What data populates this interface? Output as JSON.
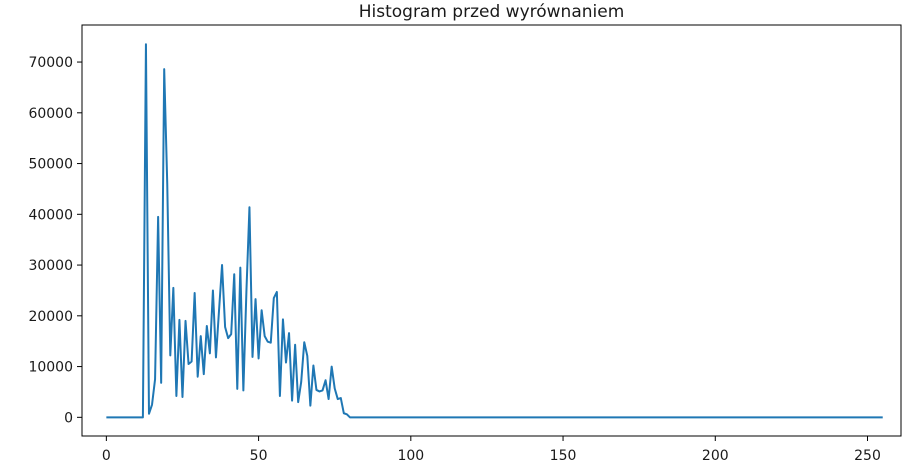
{
  "chart_data": {
    "type": "line",
    "title": "Histogram przed wyrównaniem",
    "xlabel": "",
    "ylabel": "",
    "xlim": [
      -8,
      261
    ],
    "ylim": [
      -3680,
      77300
    ],
    "grid": false,
    "legend": "none",
    "x_ticks": [
      0,
      50,
      100,
      150,
      200,
      250
    ],
    "y_ticks": [
      0,
      10000,
      20000,
      30000,
      40000,
      50000,
      60000,
      70000
    ],
    "series": [
      {
        "color": "#1f77b4",
        "x": [
          0,
          1,
          2,
          3,
          4,
          5,
          6,
          7,
          8,
          9,
          10,
          11,
          12,
          13,
          14,
          15,
          16,
          17,
          18,
          19,
          20,
          21,
          22,
          23,
          24,
          25,
          26,
          27,
          28,
          29,
          30,
          31,
          32,
          33,
          34,
          35,
          36,
          37,
          38,
          39,
          40,
          41,
          42,
          43,
          44,
          45,
          46,
          47,
          48,
          49,
          50,
          51,
          52,
          53,
          54,
          55,
          56,
          57,
          58,
          59,
          60,
          61,
          62,
          63,
          64,
          65,
          66,
          67,
          68,
          69,
          70,
          71,
          72,
          73,
          74,
          75,
          76,
          77,
          78,
          79,
          80,
          81,
          82,
          255
        ],
        "y": [
          0,
          0,
          0,
          0,
          0,
          0,
          0,
          0,
          0,
          0,
          0,
          0,
          0,
          73500,
          700,
          2500,
          7500,
          39500,
          6800,
          68600,
          46000,
          12200,
          25500,
          4200,
          19200,
          4000,
          19000,
          10500,
          11000,
          24500,
          8000,
          16000,
          8500,
          18000,
          12600,
          25000,
          11800,
          21000,
          30000,
          17800,
          15600,
          16400,
          28200,
          5600,
          29500,
          5300,
          24800,
          41400,
          11900,
          23300,
          11600,
          21100,
          16000,
          14900,
          14700,
          23500,
          24700,
          4200,
          19300,
          10800,
          16600,
          3300,
          14300,
          3000,
          7000,
          14800,
          12100,
          2300,
          10200,
          5400,
          5100,
          5300,
          7300,
          3600,
          10000,
          5700,
          3600,
          3800,
          800,
          600,
          0,
          0,
          0,
          0
        ]
      }
    ]
  }
}
